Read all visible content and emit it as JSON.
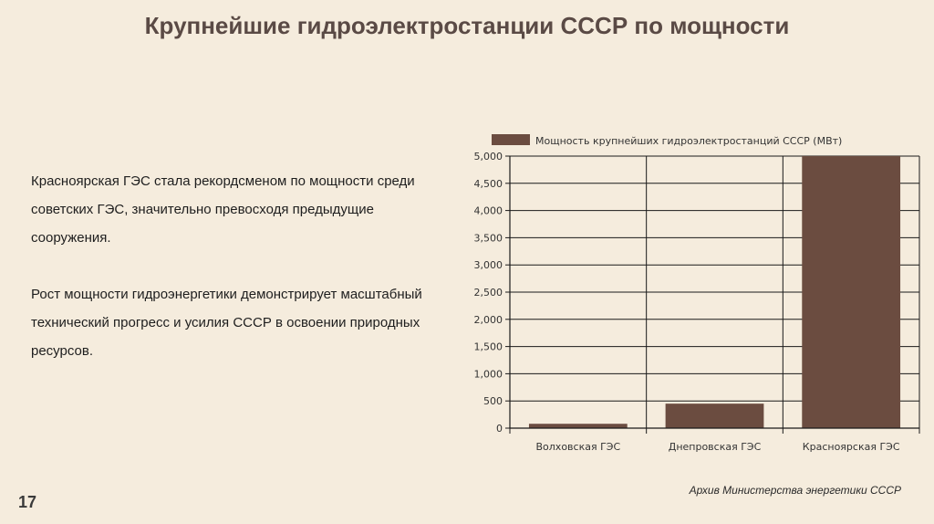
{
  "slide": {
    "title": "Крупнейшие гидроэлектростанции СССР по мощности",
    "paragraphs": [
      "Красноярская ГЭС стала рекордсменом по мощности среди советских ГЭС, значительно превосходя предыдущие сооружения.",
      "Рост мощности гидроэнергетики демонстрирует масштабный технический прогресс и усилия СССР в освоении природных ресурсов."
    ],
    "slide_number": "17",
    "source": "Архив Министерства энергетики СССР"
  },
  "chart_data": {
    "type": "bar",
    "categories": [
      "Волховская ГЭС",
      "Днепровская ГЭС",
      "Красноярская ГЭС"
    ],
    "series": [
      {
        "name": "Мощность крупнейших гидроэлектростанций СССР (МВт)",
        "values": [
          80,
          450,
          5000
        ]
      }
    ],
    "ylim": [
      0,
      5000
    ],
    "yticks": [
      "0",
      "500",
      "1,000",
      "1,500",
      "2,000",
      "2,500",
      "3,000",
      "3,500",
      "4,000",
      "4,500",
      "5,000"
    ],
    "legend": "top",
    "grid": true,
    "bar_color": "#6b4c40"
  }
}
